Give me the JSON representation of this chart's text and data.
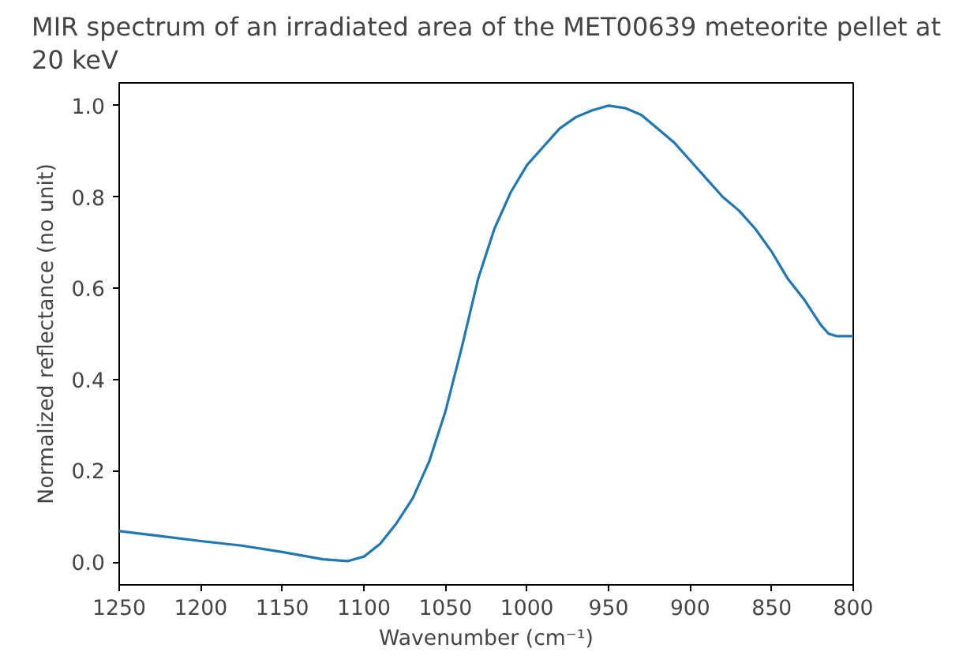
{
  "chart_data": {
    "type": "line",
    "title": "MIR spectrum of an irradiated area of the MET00639 meteorite pellet at\n20 keV",
    "xlabel": "Wavenumber (cm⁻¹)",
    "ylabel": "Normalized reflectance (no unit)",
    "x": [
      1250,
      1225,
      1200,
      1175,
      1150,
      1125,
      1110,
      1100,
      1090,
      1080,
      1070,
      1060,
      1050,
      1040,
      1030,
      1020,
      1010,
      1000,
      990,
      980,
      970,
      960,
      950,
      940,
      930,
      920,
      910,
      900,
      890,
      880,
      870,
      860,
      850,
      840,
      830,
      820,
      815,
      810,
      800
    ],
    "series": [
      {
        "color": "#1f77b4",
        "values": [
          0.068,
          0.057,
          0.046,
          0.036,
          0.022,
          0.006,
          0.002,
          0.012,
          0.04,
          0.085,
          0.14,
          0.22,
          0.33,
          0.47,
          0.62,
          0.73,
          0.81,
          0.87,
          0.91,
          0.95,
          0.975,
          0.99,
          1.0,
          0.995,
          0.98,
          0.95,
          0.92,
          0.88,
          0.84,
          0.8,
          0.77,
          0.73,
          0.68,
          0.62,
          0.575,
          0.52,
          0.5,
          0.495,
          0.495
        ]
      }
    ],
    "xlim": [
      1250,
      800
    ],
    "ylim": [
      -0.05,
      1.05
    ],
    "xticks": [
      1250,
      1200,
      1150,
      1100,
      1050,
      1000,
      950,
      900,
      850,
      800
    ],
    "yticks": [
      {
        "value": 0,
        "label": "0.0"
      },
      {
        "value": 0.2,
        "label": "0.2"
      },
      {
        "value": 0.4,
        "label": "0.4"
      },
      {
        "value": 0.6,
        "label": "0.6"
      },
      {
        "value": 0.8,
        "label": "0.8"
      },
      {
        "value": 1.0,
        "label": "1.0"
      }
    ],
    "grid": false
  }
}
